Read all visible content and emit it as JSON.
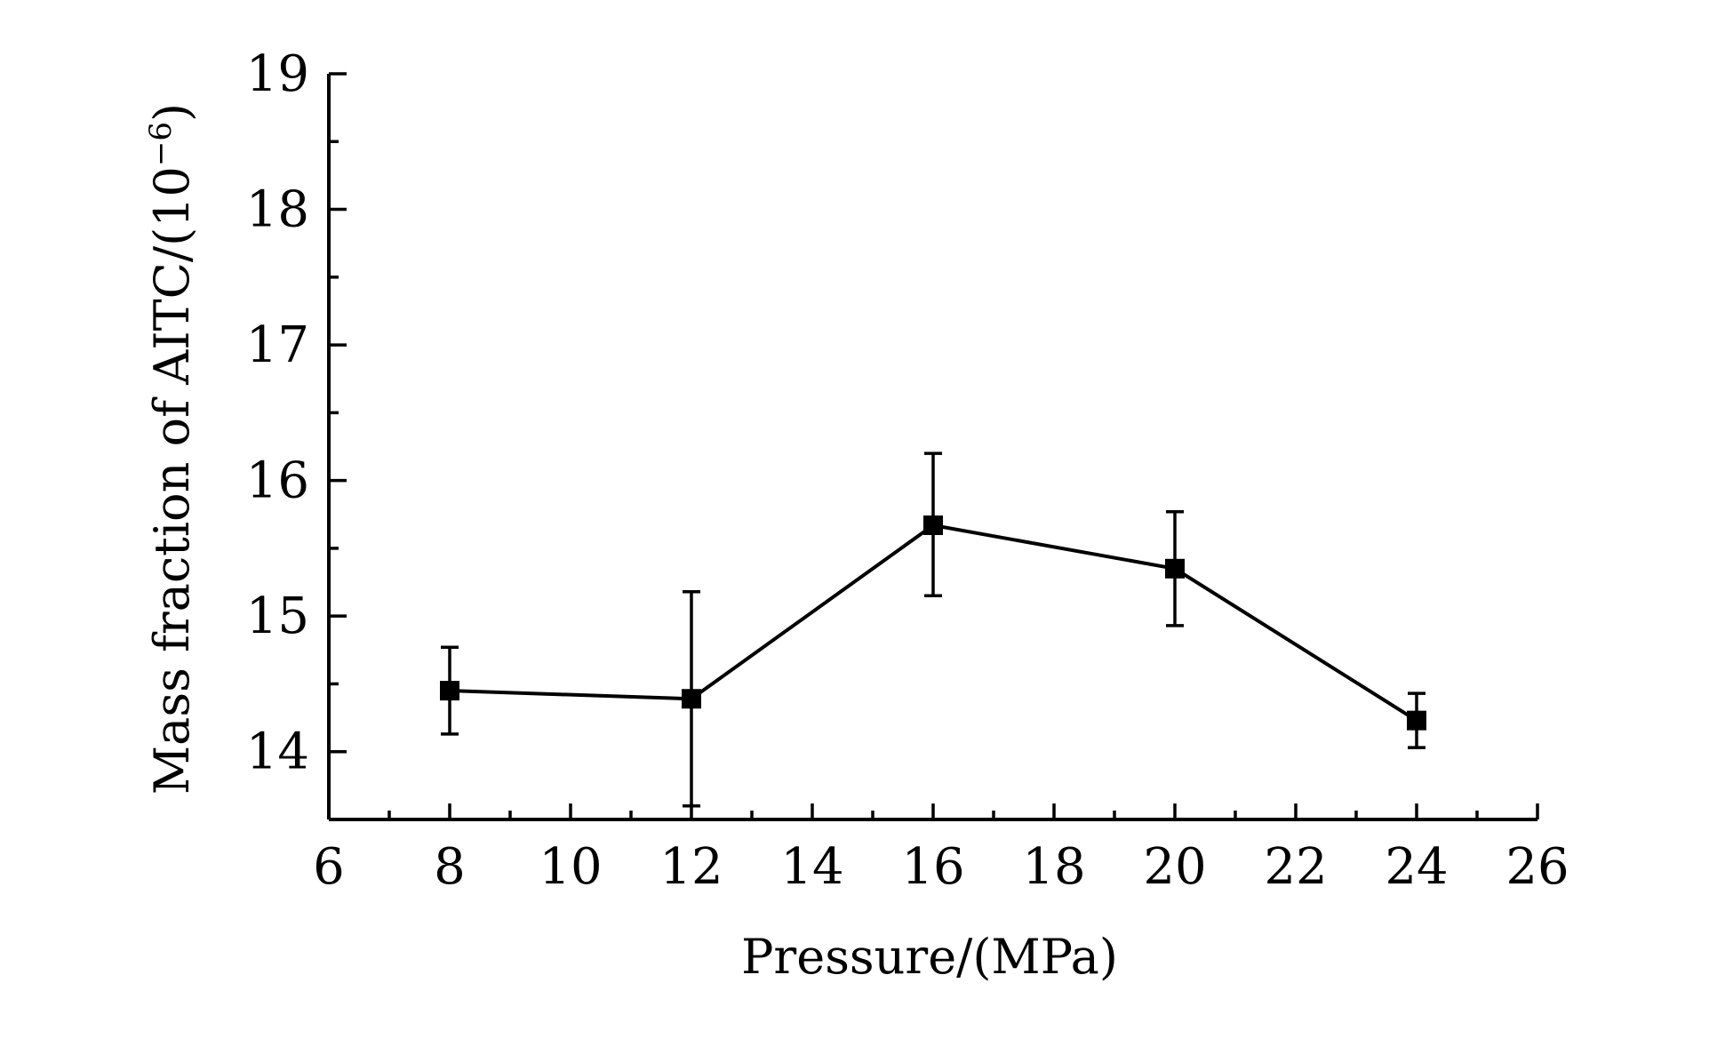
{
  "chart_data": {
    "type": "line",
    "title": "",
    "xlabel": "Pressure/(MPa)",
    "ylabel_main": "Mass fraction of AITC/(10",
    "ylabel_sup": "−6",
    "ylabel_end": ")",
    "xlim": [
      6,
      26
    ],
    "ylim": [
      13.5,
      19
    ],
    "x_ticks": [
      6,
      8,
      10,
      12,
      14,
      16,
      18,
      20,
      22,
      24,
      26
    ],
    "x_minor_step": 1,
    "y_ticks": [
      14,
      15,
      16,
      17,
      18,
      19
    ],
    "y_minor_step": 0.5,
    "grid": false,
    "legend": "none",
    "marker": "square",
    "color": "#000000",
    "series": [
      {
        "x": [
          8,
          12,
          16,
          20,
          24
        ],
        "y": [
          14.45,
          14.39,
          15.67,
          15.35,
          14.23
        ],
        "err_upper": [
          14.77,
          15.18,
          16.2,
          15.77,
          14.43
        ],
        "err_lower": [
          14.13,
          13.6,
          15.15,
          14.93,
          14.03
        ]
      }
    ]
  }
}
